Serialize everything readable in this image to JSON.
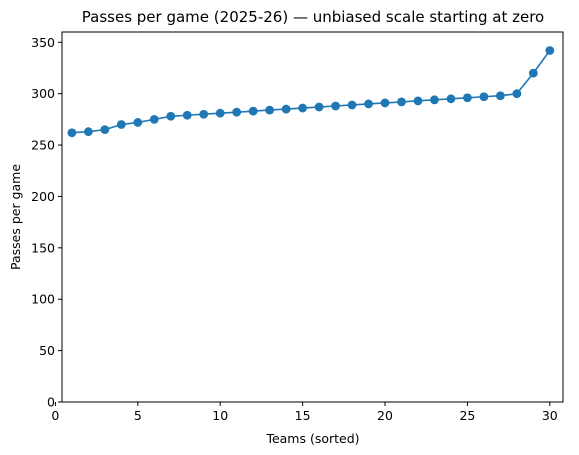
{
  "chart_data": {
    "type": "line",
    "title": "Passes per game (2025-26) — unbiased scale starting at zero",
    "xlabel": "Teams (sorted)",
    "ylabel": "Passes per game",
    "xlim": [
      0.4,
      30.8
    ],
    "ylim": [
      0,
      360
    ],
    "xticks": [
      0,
      5,
      10,
      15,
      20,
      25,
      30
    ],
    "yticks": [
      0,
      50,
      100,
      150,
      200,
      250,
      300,
      350
    ],
    "grid": false,
    "legend": "none",
    "series": [
      {
        "color": "#1f77b4",
        "marker": "circle",
        "x": [
          1,
          2,
          3,
          4,
          5,
          6,
          7,
          8,
          9,
          10,
          11,
          12,
          13,
          14,
          15,
          16,
          17,
          18,
          19,
          20,
          21,
          22,
          23,
          24,
          25,
          26,
          27,
          28,
          29,
          30
        ],
        "y": [
          262,
          263,
          265,
          270,
          272,
          275,
          278,
          279,
          280,
          281,
          282,
          283,
          284,
          285,
          286,
          287,
          288,
          289,
          290,
          291,
          292,
          293,
          294,
          295,
          296,
          297,
          298,
          300,
          320,
          342
        ]
      }
    ]
  }
}
